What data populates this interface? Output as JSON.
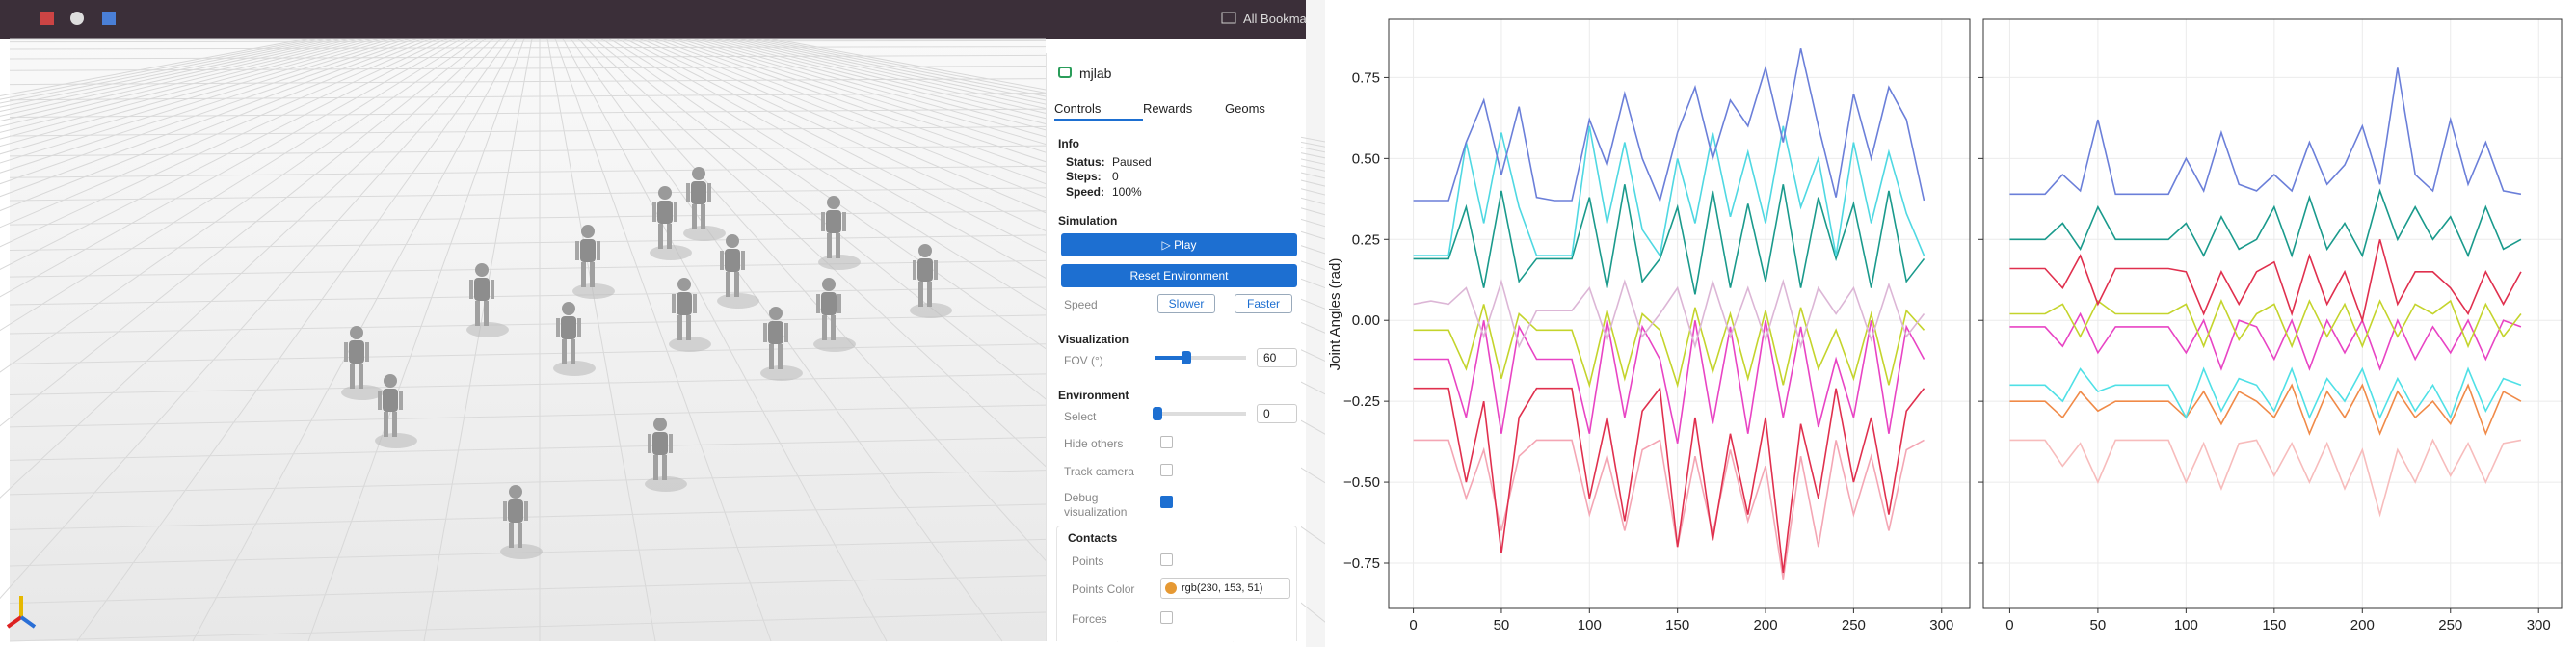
{
  "browser": {
    "bookmarks": "All Bookma"
  },
  "app": {
    "title": "mjlab",
    "tabs": [
      "Controls",
      "Rewards",
      "Geoms"
    ],
    "info": {
      "heading": "Info",
      "rows": [
        [
          "Status:",
          "Paused"
        ],
        [
          "Steps:",
          "0"
        ],
        [
          "Speed:",
          "100%"
        ]
      ]
    },
    "simulation": {
      "heading": "Simulation",
      "play": "▷ Play",
      "reset": "Reset Environment",
      "speed_label": "Speed",
      "slower": "Slower",
      "faster": "Faster"
    },
    "visualization": {
      "heading": "Visualization",
      "fov_label": "FOV (°)",
      "fov_value": "60"
    },
    "environment": {
      "heading": "Environment",
      "select_label": "Select",
      "select_value": "0",
      "hide_others": "Hide others",
      "track_camera": "Track camera",
      "debug": "Debug visualization"
    },
    "contacts": {
      "heading": "Contacts",
      "points": "Points",
      "points_color": "Points Color",
      "color_value": "rgb(230, 153, 51)",
      "forces": "Forces"
    }
  },
  "chart_data": [
    {
      "type": "line",
      "ylabel": "Joint Angles (rad)",
      "grid": true,
      "xlim": [
        -14,
        316
      ],
      "ylim": [
        -0.89,
        0.93
      ],
      "xticks": [
        0,
        50,
        100,
        150,
        200,
        250,
        300
      ],
      "yticks": [
        {
          "value": -0.75,
          "label": "−0.75"
        },
        {
          "value": -0.5,
          "label": "−0.50"
        },
        {
          "value": -0.25,
          "label": "−0.25"
        },
        {
          "value": 0,
          "label": "0.00"
        },
        {
          "value": 0.25,
          "label": "0.25"
        },
        {
          "value": 0.5,
          "label": "0.50"
        },
        {
          "value": 0.75,
          "label": "0.75"
        }
      ],
      "x": [
        0,
        10,
        20,
        30,
        40,
        50,
        60,
        70,
        80,
        90,
        100,
        110,
        120,
        130,
        140,
        150,
        160,
        170,
        180,
        190,
        200,
        210,
        220,
        230,
        240,
        250,
        260,
        270,
        280,
        290
      ],
      "series": [
        {
          "color": "#f4a6b4",
          "values": [
            -0.37,
            -0.37,
            -0.37,
            -0.55,
            -0.4,
            -0.65,
            -0.42,
            -0.37,
            -0.37,
            -0.37,
            -0.6,
            -0.42,
            -0.65,
            -0.4,
            -0.37,
            -0.7,
            -0.42,
            -0.66,
            -0.4,
            -0.62,
            -0.45,
            -0.8,
            -0.42,
            -0.7,
            -0.37,
            -0.6,
            -0.42,
            -0.65,
            -0.4,
            -0.37
          ]
        },
        {
          "color": "#e0304e",
          "values": [
            -0.21,
            -0.21,
            -0.21,
            -0.5,
            -0.25,
            -0.72,
            -0.3,
            -0.21,
            -0.21,
            -0.21,
            -0.55,
            -0.3,
            -0.62,
            -0.28,
            -0.21,
            -0.7,
            -0.3,
            -0.68,
            -0.35,
            -0.6,
            -0.3,
            -0.78,
            -0.32,
            -0.55,
            -0.21,
            -0.5,
            -0.3,
            -0.6,
            -0.28,
            -0.21
          ]
        },
        {
          "color": "#e844c4",
          "values": [
            -0.12,
            -0.12,
            -0.12,
            -0.3,
            0.0,
            -0.35,
            -0.02,
            -0.12,
            -0.12,
            -0.12,
            -0.35,
            0.0,
            -0.3,
            -0.02,
            -0.12,
            -0.38,
            0.0,
            -0.32,
            -0.02,
            -0.35,
            0.0,
            -0.3,
            -0.02,
            -0.33,
            -0.12,
            -0.3,
            0.0,
            -0.35,
            -0.02,
            -0.12
          ]
        },
        {
          "color": "#c4d42c",
          "values": [
            -0.03,
            -0.03,
            -0.03,
            -0.15,
            0.05,
            -0.18,
            0.02,
            -0.03,
            -0.03,
            -0.03,
            -0.2,
            0.03,
            -0.18,
            0.02,
            -0.03,
            -0.2,
            0.04,
            -0.16,
            0.02,
            -0.18,
            0.03,
            -0.2,
            0.04,
            -0.15,
            -0.03,
            -0.18,
            0.02,
            -0.2,
            0.03,
            -0.03
          ]
        },
        {
          "color": "#dcb6d6",
          "values": [
            0.05,
            0.06,
            0.05,
            0.1,
            -0.05,
            0.12,
            -0.08,
            0.03,
            0.03,
            0.03,
            0.1,
            -0.06,
            0.12,
            -0.05,
            0.02,
            0.1,
            -0.08,
            0.12,
            -0.05,
            0.1,
            -0.06,
            0.12,
            -0.08,
            0.1,
            0.02,
            0.1,
            -0.06,
            0.11,
            -0.05,
            0.02
          ]
        },
        {
          "color": "#1a9a8c",
          "values": [
            0.19,
            0.19,
            0.19,
            0.35,
            0.1,
            0.4,
            0.12,
            0.19,
            0.19,
            0.19,
            0.38,
            0.1,
            0.42,
            0.12,
            0.19,
            0.35,
            0.08,
            0.4,
            0.1,
            0.36,
            0.12,
            0.42,
            0.1,
            0.38,
            0.19,
            0.36,
            0.1,
            0.4,
            0.12,
            0.19
          ]
        },
        {
          "color": "#4fd8e2",
          "values": [
            0.2,
            0.2,
            0.2,
            0.55,
            0.3,
            0.58,
            0.35,
            0.2,
            0.2,
            0.2,
            0.6,
            0.3,
            0.55,
            0.28,
            0.2,
            0.5,
            0.3,
            0.58,
            0.32,
            0.52,
            0.3,
            0.6,
            0.35,
            0.5,
            0.2,
            0.55,
            0.3,
            0.52,
            0.33,
            0.2
          ]
        },
        {
          "color": "#6b7fd9",
          "values": [
            0.37,
            0.37,
            0.37,
            0.55,
            0.68,
            0.45,
            0.66,
            0.38,
            0.37,
            0.37,
            0.62,
            0.48,
            0.7,
            0.5,
            0.37,
            0.58,
            0.72,
            0.5,
            0.68,
            0.6,
            0.78,
            0.55,
            0.84,
            0.6,
            0.38,
            0.7,
            0.5,
            0.72,
            0.62,
            0.37
          ]
        }
      ]
    },
    {
      "type": "line",
      "grid": true,
      "xlim": [
        -15,
        313
      ],
      "ylim": [
        -0.89,
        0.93
      ],
      "xticks": [
        0,
        50,
        100,
        150,
        200,
        250,
        300
      ],
      "yticks": [
        -0.75,
        -0.5,
        -0.25,
        0,
        0.25,
        0.5,
        0.75
      ],
      "x": [
        0,
        10,
        20,
        30,
        40,
        50,
        60,
        70,
        80,
        90,
        100,
        110,
        120,
        130,
        140,
        150,
        160,
        170,
        180,
        190,
        200,
        210,
        220,
        230,
        240,
        250,
        260,
        270,
        280,
        290
      ],
      "series": [
        {
          "color": "#f7bcbc",
          "values": [
            -0.37,
            -0.37,
            -0.37,
            -0.45,
            -0.38,
            -0.5,
            -0.37,
            -0.37,
            -0.37,
            -0.37,
            -0.5,
            -0.38,
            -0.52,
            -0.38,
            -0.37,
            -0.48,
            -0.38,
            -0.5,
            -0.38,
            -0.52,
            -0.4,
            -0.6,
            -0.4,
            -0.5,
            -0.37,
            -0.48,
            -0.38,
            -0.5,
            -0.38,
            -0.37
          ]
        },
        {
          "color": "#f08a48",
          "values": [
            -0.25,
            -0.25,
            -0.25,
            -0.3,
            -0.22,
            -0.28,
            -0.25,
            -0.25,
            -0.25,
            -0.25,
            -0.3,
            -0.22,
            -0.32,
            -0.22,
            -0.25,
            -0.3,
            -0.2,
            -0.35,
            -0.22,
            -0.3,
            -0.2,
            -0.35,
            -0.22,
            -0.3,
            -0.25,
            -0.32,
            -0.2,
            -0.35,
            -0.22,
            -0.25
          ]
        },
        {
          "color": "#4fe0e6",
          "values": [
            -0.2,
            -0.2,
            -0.2,
            -0.25,
            -0.15,
            -0.22,
            -0.2,
            -0.2,
            -0.2,
            -0.2,
            -0.3,
            -0.15,
            -0.28,
            -0.18,
            -0.2,
            -0.28,
            -0.15,
            -0.3,
            -0.18,
            -0.25,
            -0.15,
            -0.3,
            -0.18,
            -0.28,
            -0.2,
            -0.3,
            -0.15,
            -0.28,
            -0.18,
            -0.2
          ]
        },
        {
          "color": "#e844c4",
          "values": [
            -0.02,
            -0.02,
            -0.02,
            -0.08,
            0.02,
            -0.1,
            -0.02,
            -0.02,
            -0.02,
            -0.02,
            -0.1,
            0.0,
            -0.15,
            0.0,
            -0.02,
            -0.12,
            0.0,
            -0.15,
            0.0,
            -0.1,
            0.0,
            -0.15,
            0.0,
            -0.12,
            -0.02,
            -0.1,
            0.0,
            -0.12,
            0.0,
            -0.02
          ]
        },
        {
          "color": "#c4d42c",
          "values": [
            0.02,
            0.02,
            0.02,
            0.05,
            -0.05,
            0.06,
            0.02,
            0.02,
            0.02,
            0.02,
            0.05,
            -0.08,
            0.06,
            -0.06,
            0.02,
            0.05,
            -0.08,
            0.06,
            -0.05,
            0.05,
            -0.08,
            0.06,
            -0.05,
            0.05,
            0.02,
            0.06,
            -0.08,
            0.05,
            -0.05,
            0.02
          ]
        },
        {
          "color": "#e0304e",
          "values": [
            0.16,
            0.16,
            0.16,
            0.1,
            0.2,
            0.05,
            0.16,
            0.16,
            0.16,
            0.16,
            0.15,
            0.02,
            0.15,
            0.05,
            0.15,
            0.18,
            0.02,
            0.2,
            0.05,
            0.15,
            0.0,
            0.25,
            0.05,
            0.15,
            0.15,
            0.1,
            0.02,
            0.15,
            0.05,
            0.15
          ]
        },
        {
          "color": "#1a9a8c",
          "values": [
            0.25,
            0.25,
            0.25,
            0.3,
            0.22,
            0.35,
            0.25,
            0.25,
            0.25,
            0.25,
            0.3,
            0.2,
            0.32,
            0.22,
            0.25,
            0.35,
            0.2,
            0.38,
            0.22,
            0.3,
            0.2,
            0.4,
            0.25,
            0.35,
            0.25,
            0.32,
            0.2,
            0.35,
            0.22,
            0.25
          ]
        },
        {
          "color": "#6b7fd9",
          "values": [
            0.39,
            0.39,
            0.39,
            0.45,
            0.4,
            0.62,
            0.39,
            0.39,
            0.39,
            0.39,
            0.5,
            0.4,
            0.58,
            0.42,
            0.4,
            0.45,
            0.4,
            0.55,
            0.42,
            0.48,
            0.6,
            0.42,
            0.78,
            0.45,
            0.4,
            0.62,
            0.42,
            0.55,
            0.4,
            0.39
          ]
        }
      ]
    }
  ]
}
